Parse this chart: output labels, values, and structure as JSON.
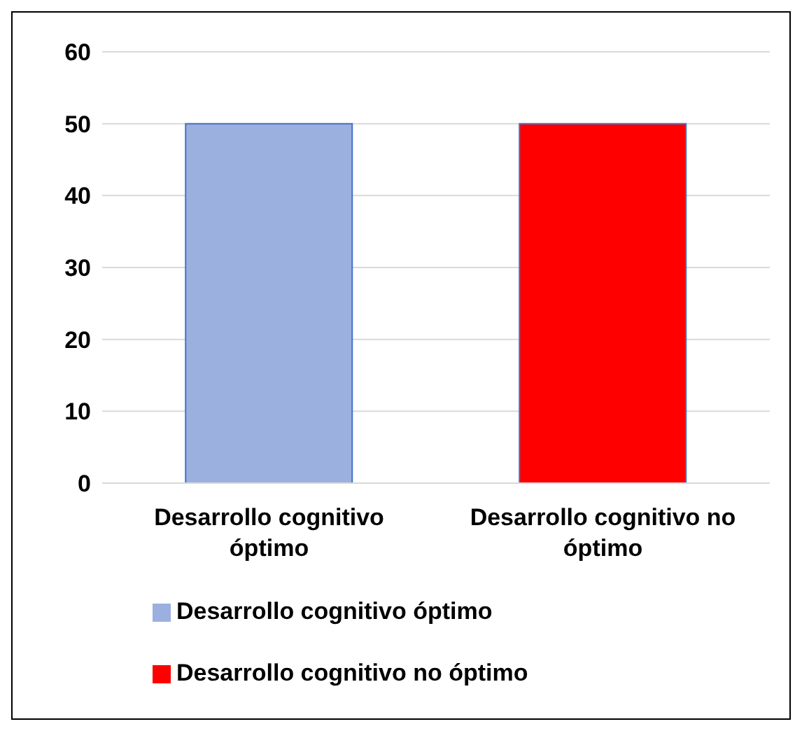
{
  "chart_data": {
    "type": "bar",
    "categories": [
      "Desarrollo cognitivo óptimo",
      "Desarrollo cognitivo no óptimo"
    ],
    "series": [
      {
        "name": "Desarrollo cognitivo óptimo",
        "color": "#9bb0df",
        "values": [
          50,
          null
        ]
      },
      {
        "name": "Desarrollo cognitivo no óptimo",
        "color": "#ff0000",
        "values": [
          null,
          50
        ]
      }
    ],
    "ylim": [
      0,
      60
    ],
    "yticks": [
      0,
      10,
      20,
      30,
      40,
      50,
      60
    ],
    "grid": "y",
    "legend": "bottom"
  }
}
